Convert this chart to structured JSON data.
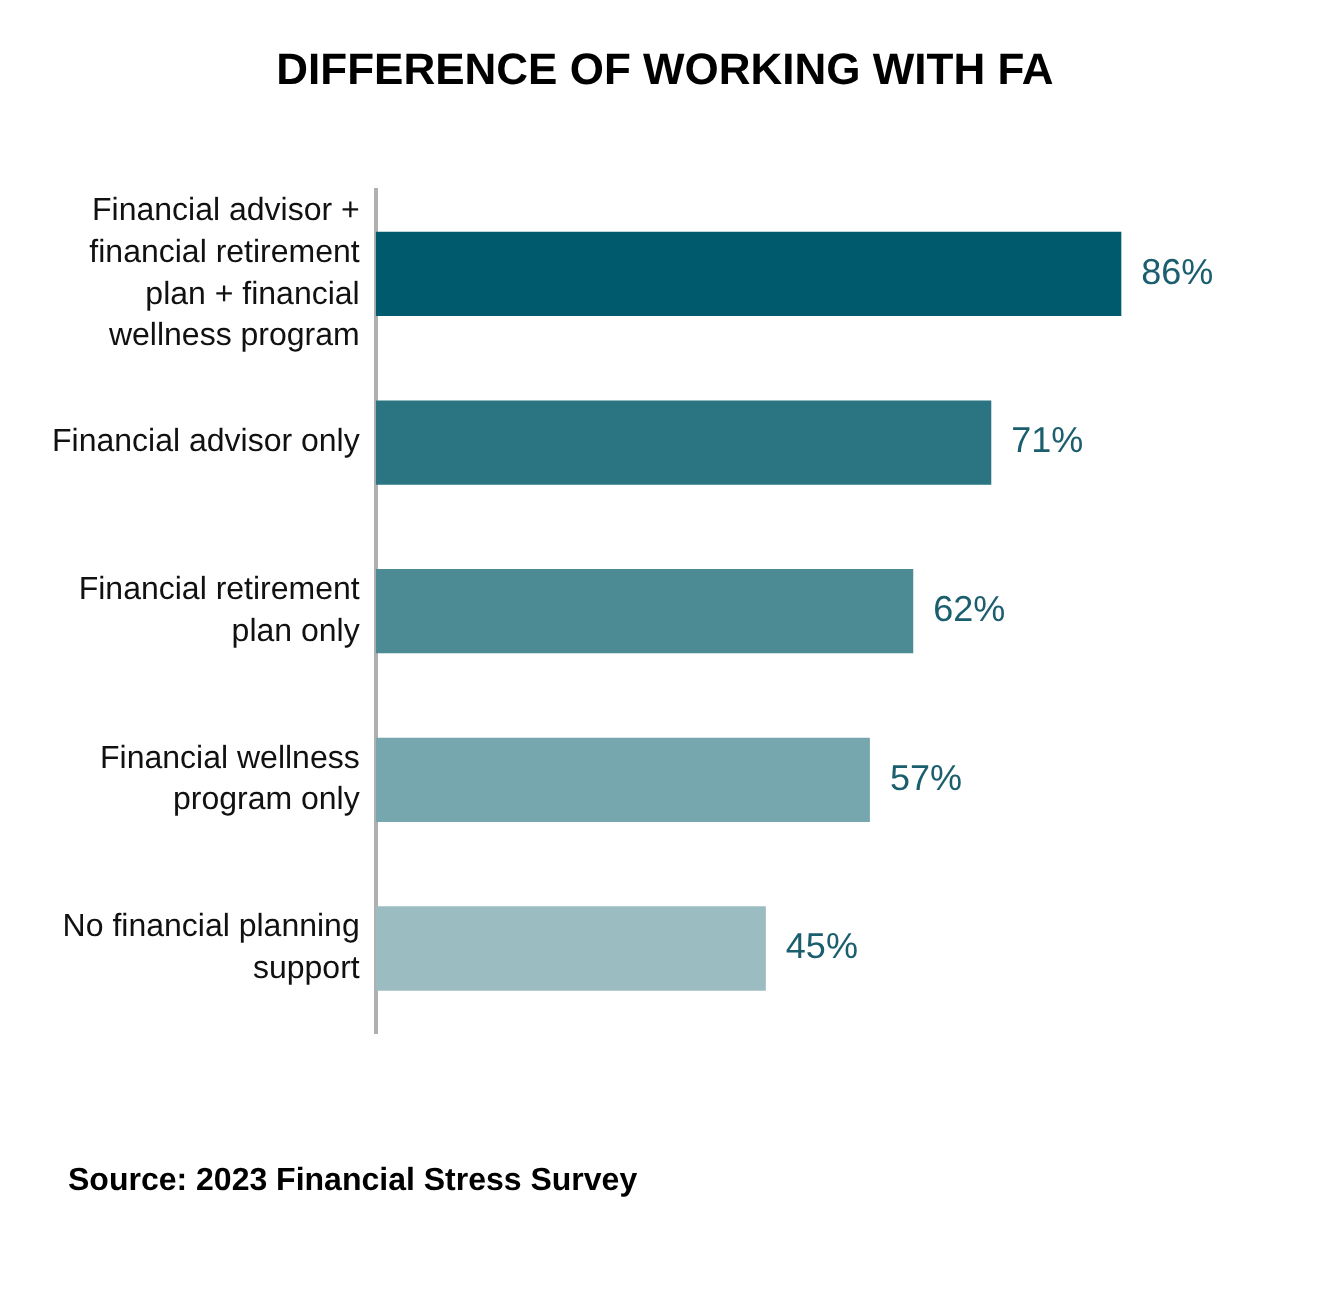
{
  "chart_data": {
    "type": "bar",
    "orientation": "horizontal",
    "title": "DIFFERENCE OF WORKING WITH FA",
    "categories": [
      "Financial advisor + financial retirement plan + financial wellness program",
      "Financial advisor only",
      "Financial retirement plan only",
      "Financial wellness program only",
      "No financial planning support"
    ],
    "values": [
      86,
      71,
      62,
      57,
      45
    ],
    "value_labels": [
      "86%",
      "71%",
      "62%",
      "57%",
      "45%"
    ],
    "colors": [
      "#005a6e",
      "#2a7581",
      "#4d8b94",
      "#76a7ae",
      "#9bbdc2"
    ],
    "grid": false,
    "legend": false,
    "tick_labels": "y",
    "annotations": [
      "Source: 2023 Financial Stress Survey"
    ]
  }
}
